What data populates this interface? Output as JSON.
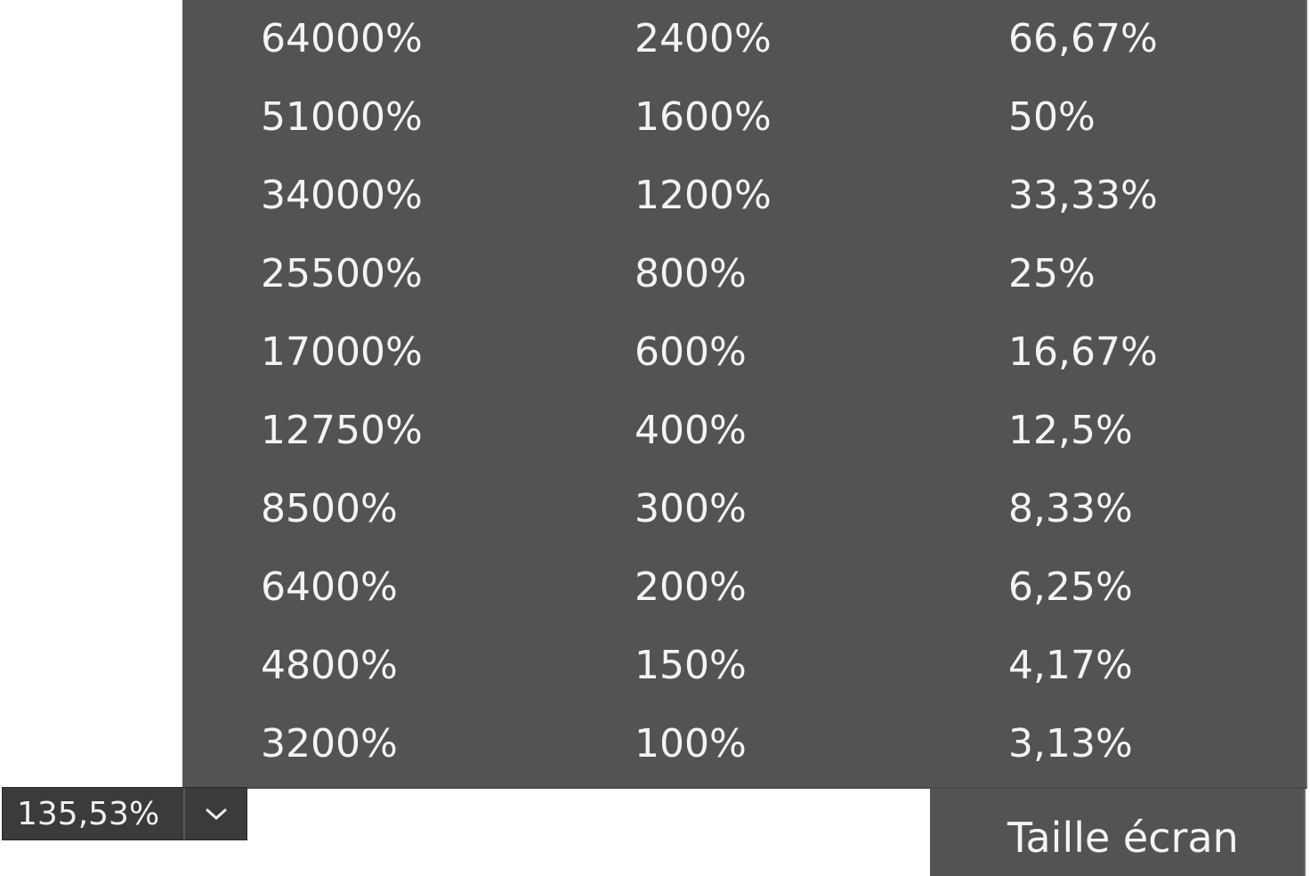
{
  "zoom_menu": {
    "columns": [
      [
        "64000%",
        "51000%",
        "34000%",
        "25500%",
        "17000%",
        "12750%",
        "8500%",
        "6400%",
        "4800%",
        "3200%"
      ],
      [
        "2400%",
        "1600%",
        "1200%",
        "800%",
        "600%",
        "400%",
        "300%",
        "200%",
        "150%",
        "100%"
      ],
      [
        "66,67%",
        "50%",
        "33,33%",
        "25%",
        "16,67%",
        "12,5%",
        "8,33%",
        "6,25%",
        "4,17%",
        "3,13%"
      ]
    ],
    "fit_label": "Taille écran"
  },
  "zoom_control": {
    "value": "135,53%",
    "dropdown_icon": "chevron-down-icon"
  },
  "colors": {
    "menu_background": "#535353",
    "menu_text": "#f4f4f4",
    "control_background": "#3b3b3b"
  }
}
